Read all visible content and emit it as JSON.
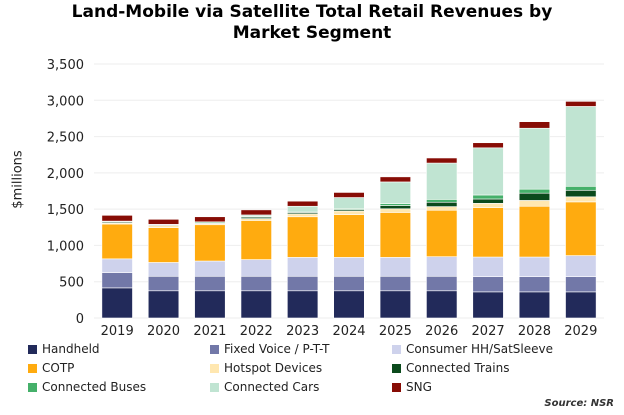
{
  "chart_data": {
    "type": "bar",
    "stacked": true,
    "title": "Land-Mobile via Satellite Total Retail Revenues by Market Segment",
    "xlabel": "",
    "ylabel": "$millions",
    "ylim": [
      0,
      3500
    ],
    "yticks": [
      "0",
      "500",
      "1,000",
      "1,500",
      "2,000",
      "2,500",
      "3,000",
      "3,500"
    ],
    "categories": [
      "2019",
      "2020",
      "2021",
      "2022",
      "2023",
      "2024",
      "2025",
      "2026",
      "2027",
      "2028",
      "2029"
    ],
    "series": [
      {
        "name": "Handheld",
        "color": "#222a5a",
        "values": [
          415,
          375,
          375,
          375,
          375,
          375,
          375,
          375,
          360,
          360,
          360
        ]
      },
      {
        "name": "Fixed Voice / P-T-T",
        "color": "#7278a8",
        "values": [
          210,
          200,
          200,
          200,
          200,
          200,
          200,
          200,
          210,
          210,
          210
        ]
      },
      {
        "name": "Consumer HH/SatSleeve",
        "color": "#ced2ec",
        "values": [
          190,
          190,
          210,
          230,
          260,
          260,
          260,
          270,
          270,
          270,
          290
        ]
      },
      {
        "name": "COTP",
        "color": "#ffab0f",
        "values": [
          480,
          480,
          500,
          540,
          560,
          590,
          620,
          640,
          680,
          700,
          740
        ]
      },
      {
        "name": "Hotspot Devices",
        "color": "#ffe7b0",
        "values": [
          15,
          30,
          15,
          25,
          40,
          50,
          50,
          50,
          60,
          80,
          70
        ]
      },
      {
        "name": "Connected Trains",
        "color": "#0b4a1c",
        "values": [
          15,
          10,
          10,
          20,
          20,
          20,
          45,
          60,
          60,
          100,
          90
        ]
      },
      {
        "name": "Connected Buses",
        "color": "#45b06a",
        "values": [
          10,
          5,
          15,
          10,
          5,
          15,
          25,
          40,
          55,
          55,
          55
        ]
      },
      {
        "name": "Connected Cars",
        "color": "#c0e4d2",
        "values": [
          0,
          0,
          0,
          20,
          80,
          150,
          300,
          500,
          650,
          840,
          1100
        ]
      },
      {
        "name": "SNG",
        "color": "#870c05",
        "values": [
          80,
          70,
          70,
          70,
          70,
          70,
          70,
          70,
          70,
          90,
          70
        ]
      }
    ],
    "grid": true,
    "legend_position": "bottom",
    "source": "Source: NSR"
  }
}
